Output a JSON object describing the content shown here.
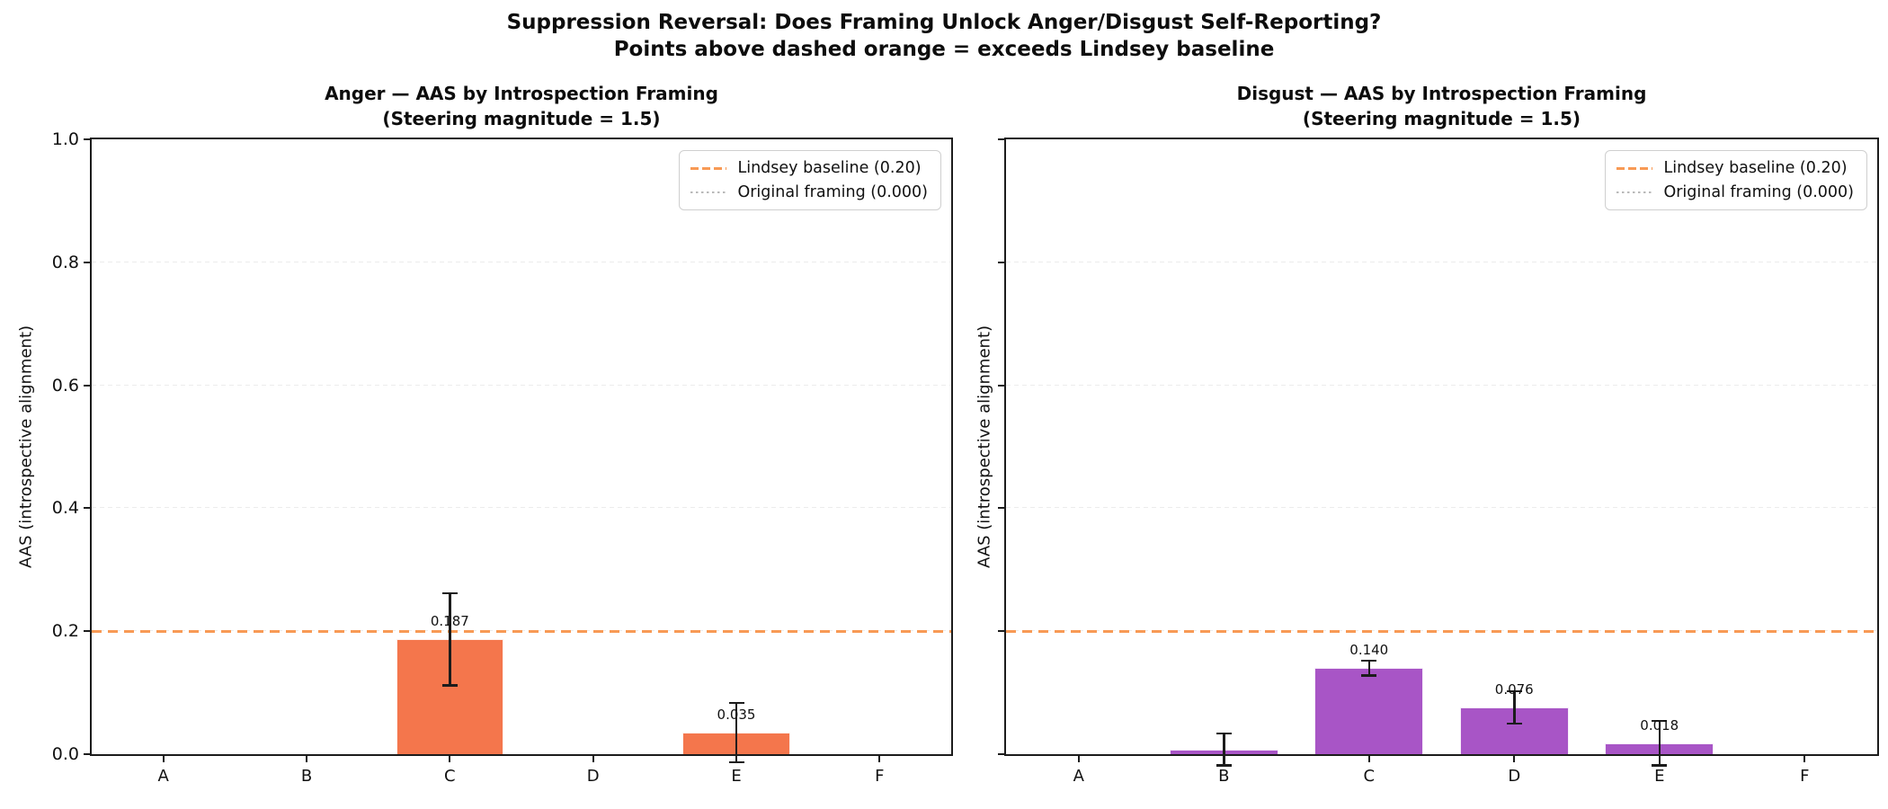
{
  "figure": {
    "suptitle_line1": "Suppression Reversal: Does Framing Unlock Anger/Disgust Self-Reporting?",
    "suptitle_line2": "Points above dashed orange = exceeds Lindsey baseline"
  },
  "colors": {
    "anger_bar": "#f4764c",
    "disgust_bar": "#a855c6",
    "baseline_orange": "#f89a55",
    "original_dotted_gray": "#b9b9b9",
    "gridline_gray": "#ececec",
    "error_bar_black": "#1c1c1c"
  },
  "chart_data": [
    {
      "type": "bar",
      "title_line1": "Anger — AAS by Introspection Framing",
      "title_line2": "(Steering magnitude = 1.5)",
      "ylabel": "AAS (introspective alignment)",
      "categories": [
        "A",
        "B",
        "C",
        "D",
        "E",
        "F"
      ],
      "values": [
        0,
        0,
        0.187,
        0,
        0.035,
        0
      ],
      "errors": [
        0,
        0,
        0.075,
        0,
        0.048,
        0
      ],
      "bar_labels": [
        "",
        "",
        "0.187",
        "",
        "0.035",
        ""
      ],
      "bar_color": "#f4764c",
      "ylim": [
        0,
        1.0
      ],
      "yticks": [
        0.0,
        0.2,
        0.4,
        0.6,
        0.8,
        1.0
      ],
      "ytick_labels": [
        "0.0",
        "0.2",
        "0.4",
        "0.6",
        "0.8",
        "1.0"
      ],
      "show_ytick_labels": true,
      "gridlines": [
        0.2,
        0.4,
        0.6,
        0.8
      ],
      "baseline_value": 0.2,
      "legend": {
        "baseline_label": "Lindsey baseline (0.20)",
        "original_label": "Original framing (0.000)"
      }
    },
    {
      "type": "bar",
      "title_line1": "Disgust — AAS by Introspection Framing",
      "title_line2": "(Steering magnitude = 1.5)",
      "ylabel": "AAS (introspective alignment)",
      "categories": [
        "A",
        "B",
        "C",
        "D",
        "E",
        "F"
      ],
      "values": [
        0,
        0.008,
        0.14,
        0.076,
        0.018,
        0
      ],
      "errors": [
        0,
        0.026,
        0.012,
        0.026,
        0.036,
        0
      ],
      "bar_labels": [
        "",
        "",
        "0.140",
        "0.076",
        "0.018",
        ""
      ],
      "bar_color": "#a855c6",
      "ylim": [
        0,
        1.0
      ],
      "yticks": [
        0.0,
        0.2,
        0.4,
        0.6,
        0.8,
        1.0
      ],
      "ytick_labels": [
        "0.0",
        "0.2",
        "0.4",
        "0.6",
        "0.8",
        "1.0"
      ],
      "show_ytick_labels": false,
      "gridlines": [
        0.2,
        0.4,
        0.6,
        0.8
      ],
      "baseline_value": 0.2,
      "legend": {
        "baseline_label": "Lindsey baseline (0.20)",
        "original_label": "Original framing (0.000)"
      }
    }
  ]
}
